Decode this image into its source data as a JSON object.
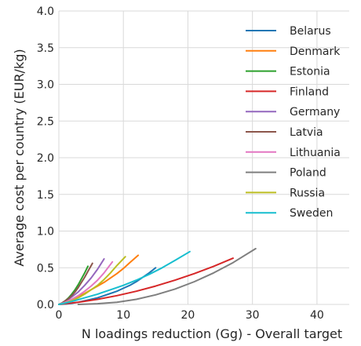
{
  "chart_data": {
    "type": "line",
    "title": "",
    "xlabel": "N loadings reduction (Gg) - Overall target",
    "ylabel": "Average cost per country (EUR/kg)",
    "xlim": [
      0,
      45
    ],
    "ylim": [
      0,
      4.0
    ],
    "x_ticks": [
      "0",
      "10",
      "20",
      "30",
      "40"
    ],
    "y_ticks": [
      "0.0",
      "0.5",
      "1.0",
      "1.5",
      "2.0",
      "2.5",
      "3.0",
      "3.5",
      "4.0"
    ],
    "grid": true,
    "legend_position": "top-right",
    "series": [
      {
        "name": "Belarus",
        "color": "#1f77b4",
        "x": [
          0,
          1,
          2,
          3,
          4,
          5,
          6,
          7,
          8,
          9,
          10,
          11,
          12,
          13,
          14,
          15
        ],
        "y": [
          0,
          0.005,
          0.015,
          0.03,
          0.05,
          0.07,
          0.09,
          0.12,
          0.15,
          0.18,
          0.22,
          0.26,
          0.31,
          0.37,
          0.43,
          0.5
        ]
      },
      {
        "name": "Denmark",
        "color": "#ff7f0e",
        "x": [
          0,
          1,
          2,
          3,
          4,
          5,
          6,
          7,
          8,
          9,
          10,
          11,
          12.3
        ],
        "y": [
          0,
          0.03,
          0.07,
          0.11,
          0.15,
          0.2,
          0.25,
          0.3,
          0.36,
          0.42,
          0.49,
          0.57,
          0.67
        ]
      },
      {
        "name": "Estonia",
        "color": "#2ca02c",
        "x": [
          0,
          0.5,
          1,
          1.5,
          2,
          2.5,
          3,
          3.5,
          4,
          4.5
        ],
        "y": [
          0,
          0.02,
          0.05,
          0.09,
          0.14,
          0.2,
          0.27,
          0.35,
          0.43,
          0.52
        ]
      },
      {
        "name": "Finland",
        "color": "#d62728",
        "x": [
          0,
          3,
          6,
          9,
          12,
          15,
          18,
          21,
          24,
          27
        ],
        "y": [
          0,
          0.03,
          0.07,
          0.12,
          0.18,
          0.25,
          0.33,
          0.42,
          0.52,
          0.63
        ]
      },
      {
        "name": "Germany",
        "color": "#9467bd",
        "x": [
          0,
          1,
          2,
          3,
          4,
          5,
          6,
          7
        ],
        "y": [
          0,
          0.04,
          0.1,
          0.17,
          0.26,
          0.36,
          0.48,
          0.62
        ]
      },
      {
        "name": "Latvia",
        "color": "#8c564b",
        "x": [
          0,
          0.5,
          1,
          1.5,
          2,
          2.5,
          3,
          3.5,
          4,
          4.5,
          5.2
        ],
        "y": [
          0,
          0.02,
          0.05,
          0.08,
          0.12,
          0.17,
          0.23,
          0.3,
          0.37,
          0.45,
          0.56
        ]
      },
      {
        "name": "Lithuania",
        "color": "#e377c2",
        "x": [
          0,
          1,
          2,
          3,
          4,
          5,
          6,
          7,
          8.3
        ],
        "y": [
          0,
          0.03,
          0.07,
          0.12,
          0.18,
          0.25,
          0.33,
          0.43,
          0.58
        ]
      },
      {
        "name": "Poland",
        "color": "#7f7f7f",
        "x": [
          3,
          6,
          9,
          12,
          15,
          18,
          21,
          24,
          27,
          30.5
        ],
        "y": [
          0,
          0.01,
          0.03,
          0.07,
          0.13,
          0.21,
          0.31,
          0.43,
          0.57,
          0.76
        ]
      },
      {
        "name": "Russia",
        "color": "#bcbd22",
        "x": [
          0,
          1,
          2,
          3,
          4,
          5,
          6,
          7,
          8,
          9,
          10.3
        ],
        "y": [
          0,
          0.02,
          0.05,
          0.09,
          0.14,
          0.2,
          0.26,
          0.34,
          0.43,
          0.53,
          0.65
        ]
      },
      {
        "name": "Sweden",
        "color": "#17becf",
        "x": [
          0,
          2,
          4,
          6,
          8,
          10,
          12,
          14,
          16,
          18,
          20.3
        ],
        "y": [
          0,
          0.04,
          0.09,
          0.14,
          0.2,
          0.26,
          0.33,
          0.41,
          0.5,
          0.6,
          0.72
        ]
      }
    ]
  }
}
